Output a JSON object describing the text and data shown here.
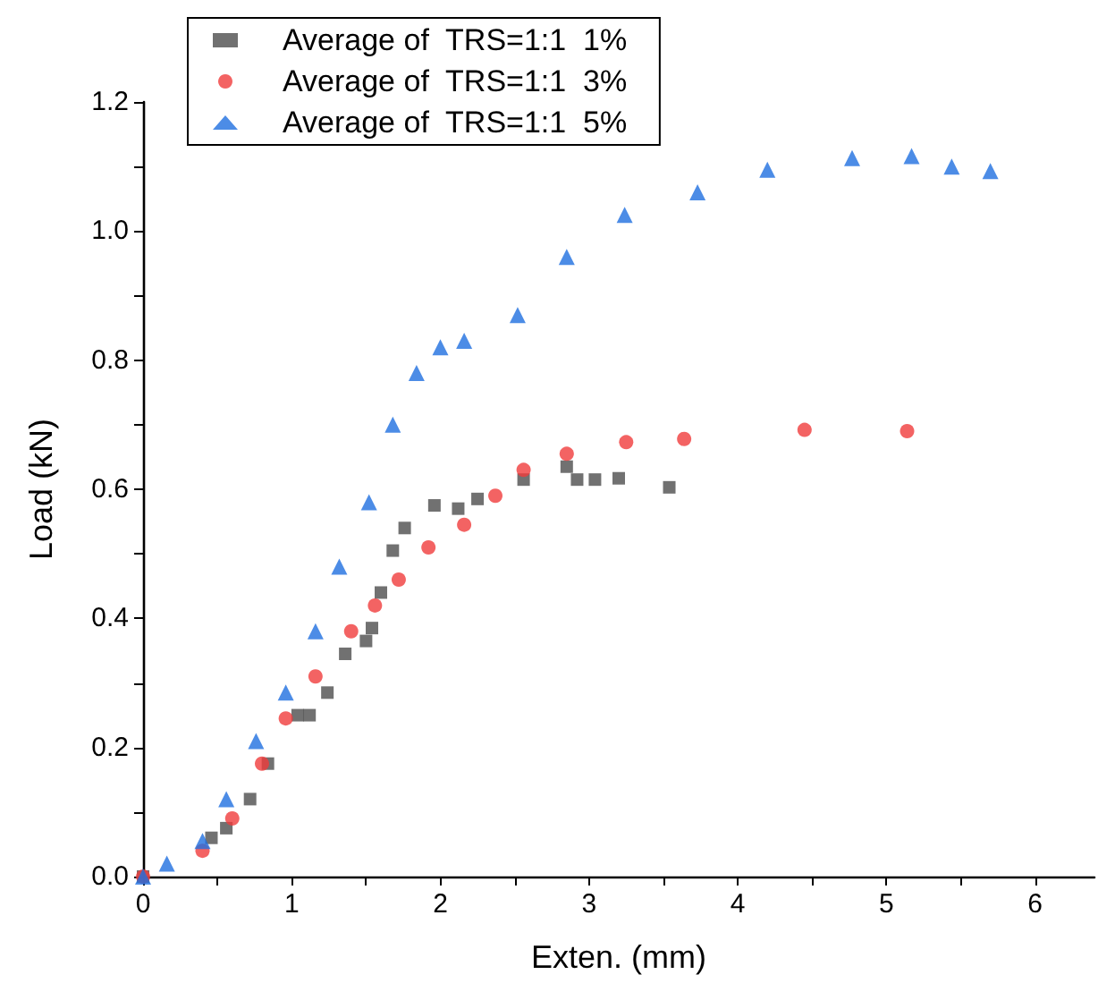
{
  "chart_data": {
    "type": "scatter",
    "xlabel": "Exten. (mm)",
    "ylabel": "Load (kN)",
    "xlim": [
      0,
      6.4
    ],
    "xticks": [
      0,
      {
        "value": 0.5,
        "label": null
      },
      1,
      {
        "value": 1.5,
        "label": null
      },
      2,
      {
        "value": 2.5,
        "label": null
      },
      3,
      {
        "value": 3.5,
        "label": null
      },
      4,
      {
        "value": 4.5,
        "label": null
      },
      5,
      {
        "value": 5.5,
        "label": null
      },
      6
    ],
    "ylim": [
      0,
      1.2
    ],
    "yticks": [
      {
        "value": 0,
        "label": "0.0"
      },
      {
        "value": 0.1,
        "label": null
      },
      {
        "value": 0.2,
        "label": "0.2"
      },
      {
        "value": 0.3,
        "label": null
      },
      {
        "value": 0.4,
        "label": "0.4"
      },
      {
        "value": 0.5,
        "label": null
      },
      {
        "value": 0.6,
        "label": "0.6"
      },
      {
        "value": 0.7,
        "label": null
      },
      {
        "value": 0.8,
        "label": "0.8"
      },
      {
        "value": 0.9,
        "label": null
      },
      {
        "value": 1.0,
        "label": "1.0"
      },
      {
        "value": 1.1,
        "label": null
      },
      {
        "value": 1.2,
        "label": "1.2"
      }
    ],
    "grid": false,
    "legend": "top left",
    "series": [
      {
        "name": "Average of  TRS=1:1  1%",
        "color": "#4d4d4d",
        "marker": "square",
        "x": [
          0,
          0.46,
          0.56,
          0.72,
          0.84,
          1.04,
          1.12,
          1.24,
          1.36,
          1.5,
          1.54,
          1.6,
          1.68,
          1.76,
          1.96,
          2.12,
          2.25,
          2.56,
          2.85,
          2.92,
          3.04,
          3.2,
          3.54
        ],
        "values": [
          0,
          0.06,
          0.075,
          0.12,
          0.175,
          0.25,
          0.25,
          0.285,
          0.345,
          0.365,
          0.385,
          0.44,
          0.505,
          0.54,
          0.575,
          0.57,
          0.585,
          0.615,
          0.635,
          0.615,
          0.615,
          0.617,
          0.603
        ]
      },
      {
        "name": "Average of  TRS=1:1  3%",
        "color": "#f03c3c",
        "marker": "circle",
        "x": [
          0,
          0.4,
          0.6,
          0.8,
          0.96,
          1.16,
          1.4,
          1.56,
          1.72,
          1.92,
          2.16,
          2.37,
          2.56,
          2.85,
          3.25,
          3.64,
          4.45,
          5.14
        ],
        "values": [
          0,
          0.04,
          0.09,
          0.175,
          0.245,
          0.31,
          0.38,
          0.42,
          0.46,
          0.51,
          0.545,
          0.59,
          0.63,
          0.655,
          0.673,
          0.678,
          0.692,
          0.69
        ]
      },
      {
        "name": "Average of  TRS=1:1  5%",
        "color": "#1f6fe0",
        "marker": "triangle",
        "x": [
          0,
          0.16,
          0.4,
          0.56,
          0.76,
          0.96,
          1.16,
          1.32,
          1.52,
          1.68,
          1.84,
          2.0,
          2.16,
          2.52,
          2.85,
          3.24,
          3.73,
          4.2,
          4.77,
          5.17,
          5.44,
          5.7
        ],
        "values": [
          0,
          0.02,
          0.055,
          0.12,
          0.21,
          0.285,
          0.38,
          0.48,
          0.58,
          0.7,
          0.78,
          0.82,
          0.83,
          0.87,
          0.96,
          1.025,
          1.06,
          1.095,
          1.113,
          1.116,
          1.1,
          1.093
        ]
      }
    ]
  }
}
